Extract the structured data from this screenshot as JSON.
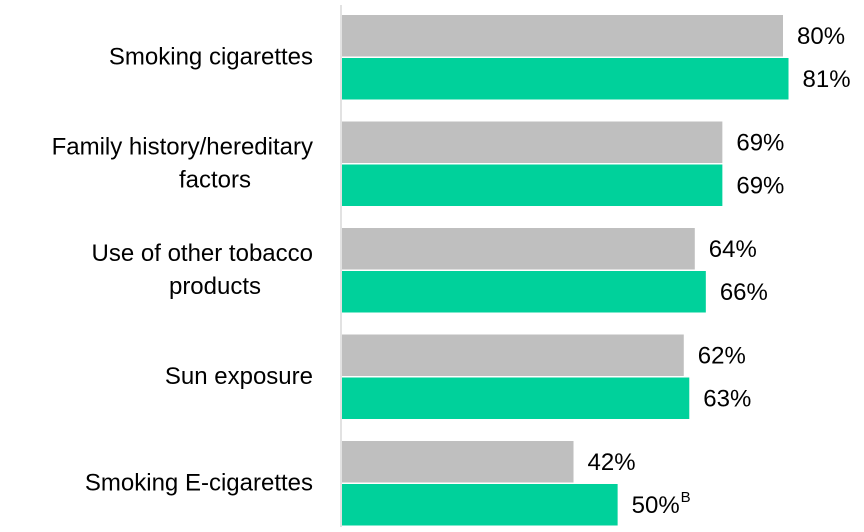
{
  "chart_data": {
    "type": "bar",
    "orientation": "horizontal",
    "categories": [
      [
        "Smoking cigarettes"
      ],
      [
        "Family history/hereditary",
        "factors"
      ],
      [
        "Use of other tobacco",
        "products"
      ],
      [
        "Sun exposure"
      ],
      [
        "Smoking E-cigarettes"
      ]
    ],
    "series": [
      {
        "values": [
          80,
          69,
          64,
          62,
          42
        ],
        "labels": [
          "80%",
          "69%",
          "64%",
          "62%",
          "42%"
        ],
        "color": "#bfbfbf"
      },
      {
        "values": [
          81,
          69,
          66,
          63,
          50
        ],
        "labels": [
          "81%",
          "69%",
          "66%",
          "63%",
          "50%"
        ],
        "color": "#00d19b",
        "superscripts": [
          "",
          "",
          "",
          "",
          "B"
        ]
      }
    ],
    "xlim": [
      0,
      100
    ],
    "grid": false,
    "legend": "none",
    "axis_color": "#d9d9d9"
  }
}
